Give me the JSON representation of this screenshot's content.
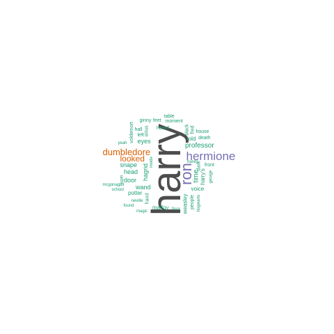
{
  "colors": {
    "c1": "#4d4d4d",
    "c2": "#7570b3",
    "c3": "#d95f02",
    "c4": "#1b9e77"
  },
  "words": [
    {
      "text": "harry",
      "weight": 100,
      "color": "c1"
    },
    {
      "text": "hermione",
      "weight": 38,
      "color": "c2"
    },
    {
      "text": "ron",
      "weight": 34,
      "color": "c2"
    },
    {
      "text": "dumbledore",
      "weight": 26,
      "color": "c3"
    },
    {
      "text": "looked",
      "weight": 22,
      "color": "c3"
    },
    {
      "text": "professor",
      "weight": 18,
      "color": "c4"
    },
    {
      "text": "snape",
      "weight": 16,
      "color": "c4"
    },
    {
      "text": "eyes",
      "weight": 16,
      "color": "c4"
    },
    {
      "text": "head",
      "weight": 15,
      "color": "c4"
    },
    {
      "text": "door",
      "weight": 15,
      "color": "c4"
    },
    {
      "text": "wand",
      "weight": 15,
      "color": "c4"
    },
    {
      "text": "hagrid",
      "weight": 15,
      "color": "c4"
    },
    {
      "text": "time",
      "weight": 14,
      "color": "c4"
    },
    {
      "text": "weasley",
      "weight": 13,
      "color": "c4"
    },
    {
      "text": "voice",
      "weight": 13,
      "color": "c4"
    },
    {
      "text": "potter",
      "weight": 13,
      "color": "c4"
    },
    {
      "text": "malfoy",
      "weight": 12,
      "color": "c4"
    },
    {
      "text": "told",
      "weight": 12,
      "color": "c4"
    },
    {
      "text": "heard",
      "weight": 12,
      "color": "c4"
    },
    {
      "text": "hand",
      "weight": 11,
      "color": "c4"
    },
    {
      "text": "people",
      "weight": 11,
      "color": "c4"
    },
    {
      "text": "harry's",
      "weight": 11,
      "color": "c4"
    },
    {
      "text": "dark",
      "weight": 10,
      "color": "c4"
    },
    {
      "text": "front",
      "weight": 10,
      "color": "c4"
    },
    {
      "text": "moment",
      "weight": 10,
      "color": "c4"
    },
    {
      "text": "black",
      "weight": 10,
      "color": "c4"
    },
    {
      "text": "voldemort",
      "weight": 10,
      "color": "c4"
    },
    {
      "text": "sirius",
      "weight": 10,
      "color": "c4"
    },
    {
      "text": "house",
      "weight": 10,
      "color": "c4"
    },
    {
      "text": "death",
      "weight": 10,
      "color": "c4"
    },
    {
      "text": "fred",
      "weight": 9,
      "color": "c4"
    },
    {
      "text": "ginny",
      "weight": 9,
      "color": "c4"
    },
    {
      "text": "feet",
      "weight": 9,
      "color": "c4"
    },
    {
      "text": "table",
      "weight": 9,
      "color": "c4"
    },
    {
      "text": "left",
      "weight": 9,
      "color": "c4"
    },
    {
      "text": "hall",
      "weight": 9,
      "color": "c4"
    },
    {
      "text": "yeah",
      "weight": 9,
      "color": "c4"
    },
    {
      "text": "inside",
      "weight": 9,
      "color": "c4"
    },
    {
      "text": "lupin",
      "weight": 9,
      "color": "c4"
    },
    {
      "text": "mcgonagall",
      "weight": 9,
      "color": "c4"
    },
    {
      "text": "school",
      "weight": 9,
      "color": "c4"
    },
    {
      "text": "neville",
      "weight": 9,
      "color": "c4"
    },
    {
      "text": "found",
      "weight": 9,
      "color": "c4"
    },
    {
      "text": "magic",
      "weight": 9,
      "color": "c4"
    },
    {
      "text": "floor",
      "weight": 9,
      "color": "c4"
    },
    {
      "text": "hogwarts",
      "weight": 9,
      "color": "c4"
    },
    {
      "text": "george",
      "weight": 9,
      "color": "c4"
    },
    {
      "text": "hands",
      "weight": 9,
      "color": "c4"
    }
  ]
}
